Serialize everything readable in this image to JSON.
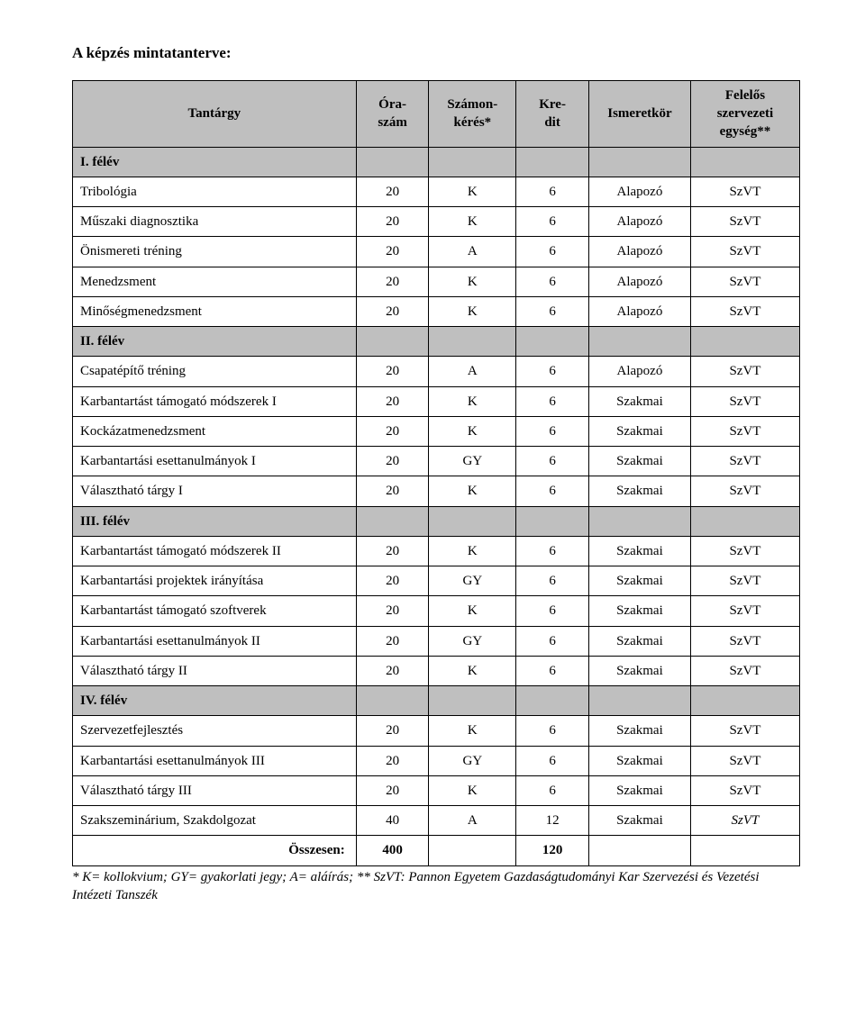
{
  "title": "A képzés mintatanterve:",
  "columns": {
    "c0": "Tantárgy",
    "c1_a": "Óra-",
    "c1_b": "szám",
    "c2_a": "Számon-",
    "c2_b": "kérés*",
    "c3_a": "Kre-",
    "c3_b": "dit",
    "c4": "Ismeretkör",
    "c5_a": "Felelős",
    "c5_b": "szervezeti",
    "c5_c": "egység**"
  },
  "sections": [
    {
      "label": "I. félév"
    },
    {
      "label": "II. félév"
    },
    {
      "label": "III. félév"
    },
    {
      "label": "IV. félév"
    }
  ],
  "rows": {
    "s1": [
      {
        "name": "Tribológia",
        "ora": "20",
        "szamon": "K",
        "kredit": "6",
        "ismeret": "Alapozó",
        "egyseg": "SzVT"
      },
      {
        "name": "Műszaki diagnosztika",
        "ora": "20",
        "szamon": "K",
        "kredit": "6",
        "ismeret": "Alapozó",
        "egyseg": "SzVT"
      },
      {
        "name": "Önismereti tréning",
        "ora": "20",
        "szamon": "A",
        "kredit": "6",
        "ismeret": "Alapozó",
        "egyseg": "SzVT"
      },
      {
        "name": "Menedzsment",
        "ora": "20",
        "szamon": "K",
        "kredit": "6",
        "ismeret": "Alapozó",
        "egyseg": "SzVT"
      },
      {
        "name": "Minőségmenedzsment",
        "ora": "20",
        "szamon": "K",
        "kredit": "6",
        "ismeret": "Alapozó",
        "egyseg": "SzVT"
      }
    ],
    "s2": [
      {
        "name": "Csapatépítő tréning",
        "ora": "20",
        "szamon": "A",
        "kredit": "6",
        "ismeret": "Alapozó",
        "egyseg": "SzVT"
      },
      {
        "name": "Karbantartást támogató módszerek I",
        "ora": "20",
        "szamon": "K",
        "kredit": "6",
        "ismeret": "Szakmai",
        "egyseg": "SzVT"
      },
      {
        "name": "Kockázatmenedzsment",
        "ora": "20",
        "szamon": "K",
        "kredit": "6",
        "ismeret": "Szakmai",
        "egyseg": "SzVT"
      },
      {
        "name": "Karbantartási esettanulmányok I",
        "ora": "20",
        "szamon": "GY",
        "kredit": "6",
        "ismeret": "Szakmai",
        "egyseg": "SzVT"
      },
      {
        "name": "Választható tárgy I",
        "ora": "20",
        "szamon": "K",
        "kredit": "6",
        "ismeret": "Szakmai",
        "egyseg": "SzVT"
      }
    ],
    "s3": [
      {
        "name": "Karbantartást támogató módszerek II",
        "ora": "20",
        "szamon": "K",
        "kredit": "6",
        "ismeret": "Szakmai",
        "egyseg": "SzVT"
      },
      {
        "name": "Karbantartási projektek irányítása",
        "ora": "20",
        "szamon": "GY",
        "kredit": "6",
        "ismeret": "Szakmai",
        "egyseg": "SzVT"
      },
      {
        "name": "Karbantartást támogató szoftverek",
        "ora": "20",
        "szamon": "K",
        "kredit": "6",
        "ismeret": "Szakmai",
        "egyseg": "SzVT"
      },
      {
        "name": "Karbantartási esettanulmányok II",
        "ora": "20",
        "szamon": "GY",
        "kredit": "6",
        "ismeret": "Szakmai",
        "egyseg": "SzVT"
      },
      {
        "name": "Választható tárgy II",
        "ora": "20",
        "szamon": "K",
        "kredit": "6",
        "ismeret": "Szakmai",
        "egyseg": "SzVT"
      }
    ],
    "s4": [
      {
        "name": "Szervezetfejlesztés",
        "ora": "20",
        "szamon": "K",
        "kredit": "6",
        "ismeret": "Szakmai",
        "egyseg": "SzVT"
      },
      {
        "name": "Karbantartási esettanulmányok III",
        "ora": "20",
        "szamon": "GY",
        "kredit": "6",
        "ismeret": "Szakmai",
        "egyseg": "SzVT"
      },
      {
        "name": "Választható tárgy III",
        "ora": "20",
        "szamon": "K",
        "kredit": "6",
        "ismeret": "Szakmai",
        "egyseg": "SzVT"
      },
      {
        "name": "Szakszeminárium, Szakdolgozat",
        "ora": "40",
        "szamon": "A",
        "kredit": "12",
        "ismeret": "Szakmai",
        "egyseg": "SzVT",
        "italic_last": true
      }
    ]
  },
  "total": {
    "label": "Összesen:",
    "ora": "400",
    "kredit": "120"
  },
  "footnote": "* K= kollokvium; GY= gyakorlati jegy; A= aláírás; ** SzVT: Pannon Egyetem Gazdaságtudományi Kar Szervezési és Vezetési Intézeti Tanszék",
  "style": {
    "header_bg": "#bfbfbf",
    "border_color": "#000000",
    "page_bg": "#ffffff",
    "text_color": "#000000"
  }
}
